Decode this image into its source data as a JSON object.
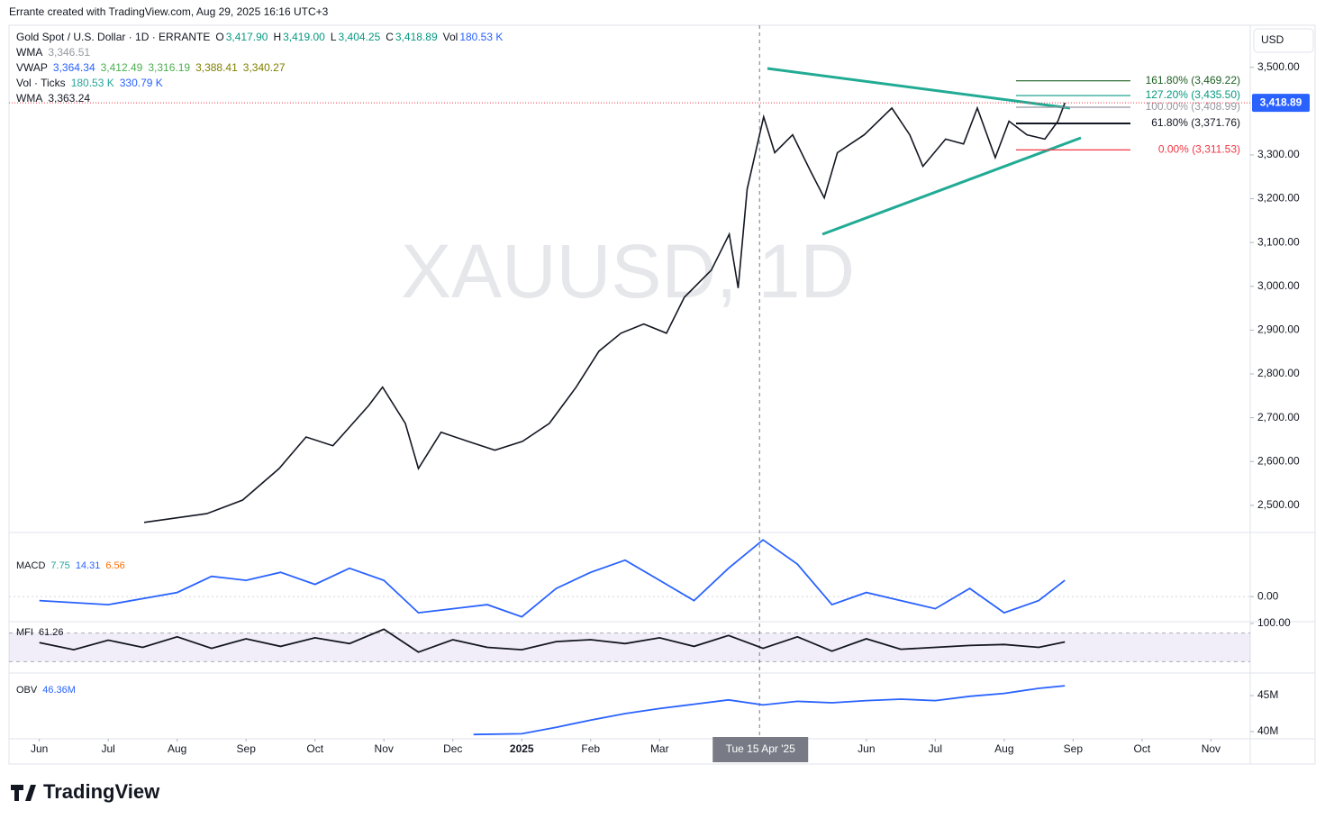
{
  "header": {
    "attribution": "Errante created with TradingView.com, Aug 29, 2025 16:16 UTC+3",
    "currency": "USD",
    "watermark": "XAUUSD, 1D",
    "brand": "TradingView"
  },
  "legend": [
    {
      "name": "Gold Spot / U.S. Dollar · 1D · ERRANTE",
      "values": [
        "O",
        "3,417.90",
        "H",
        "3,419.00",
        "L",
        "3,404.25",
        "C",
        "3,418.89",
        "Vol",
        "180.53 K"
      ],
      "colors": [
        "#131722",
        "#089981",
        "#131722",
        "#089981",
        "#131722",
        "#089981",
        "#131722",
        "#089981",
        "#131722",
        "#2962ff"
      ]
    },
    {
      "name": "WMA",
      "values": [
        "3,346.51"
      ],
      "colors": [
        "#9598a1"
      ]
    },
    {
      "name": "VWAP",
      "values": [
        "3,364.34",
        "3,412.49",
        "3,316.19",
        "3,388.41",
        "3,340.27"
      ],
      "colors": [
        "#2962ff",
        "#4caf50",
        "#4caf50",
        "#808000",
        "#808000"
      ]
    },
    {
      "name": "Vol · Ticks",
      "values": [
        "180.53 K",
        "330.79 K"
      ],
      "colors": [
        "#26a69a",
        "#2962ff"
      ]
    },
    {
      "name": "WMA",
      "values": [
        "3,363.24"
      ],
      "colors": [
        "#131722"
      ]
    }
  ],
  "chart_data": [
    {
      "type": "line",
      "color": "#131722",
      "x": [
        1.52,
        2.43,
        2.95,
        3.48,
        3.87,
        4.26,
        4.78,
        4.98,
        5.31,
        5.5,
        5.83,
        6.22,
        6.61,
        7.01,
        7.4,
        7.79,
        8.12,
        8.44,
        8.77,
        9.1,
        9.36,
        9.75,
        10.01,
        10.14,
        10.27,
        10.51,
        10.67,
        10.93,
        11.19,
        11.39,
        11.58,
        11.97,
        12.37,
        12.63,
        12.82,
        13.15,
        13.41,
        13.61,
        13.87,
        14.07,
        14.33,
        14.59,
        14.78,
        14.88
      ],
      "values": [
        2461,
        2481,
        2512,
        2584,
        2656,
        2636,
        2728,
        2770,
        2687,
        2584,
        2667,
        2646,
        2626,
        2646,
        2687,
        2770,
        2852,
        2893,
        2914,
        2893,
        2975,
        3037,
        3119,
        2996,
        3222,
        3387,
        3305,
        3346,
        3263,
        3202,
        3305,
        3346,
        3407,
        3346,
        3274,
        3336,
        3325,
        3407,
        3294,
        3377,
        3346,
        3336,
        3377,
        3418.89
      ],
      "xlim": [
        -0.44,
        17.57
      ],
      "xticks": [
        {
          "value": 0,
          "label": "Jun"
        },
        {
          "value": 1,
          "label": "Jul"
        },
        {
          "value": 2,
          "label": "Aug"
        },
        {
          "value": 3,
          "label": "Sep"
        },
        {
          "value": 4,
          "label": "Oct"
        },
        {
          "value": 5,
          "label": "Nov"
        },
        {
          "value": 6,
          "label": "Dec"
        },
        {
          "value": 7,
          "label": "2025"
        },
        {
          "value": 8,
          "label": "Feb"
        },
        {
          "value": 9,
          "label": "Mar"
        },
        {
          "value": 12,
          "label": "Jun"
        },
        {
          "value": 13,
          "label": "Jul"
        },
        {
          "value": 14,
          "label": "Aug"
        },
        {
          "value": 15,
          "label": "Sep"
        },
        {
          "value": 16,
          "label": "Oct"
        },
        {
          "value": 17,
          "label": "Nov"
        }
      ],
      "ylim": [
        2440,
        3592
      ],
      "yticks": [
        {
          "value": 3500,
          "label": "3,500.00"
        },
        {
          "value": 3300,
          "label": "3,300.00"
        },
        {
          "value": 3200,
          "label": "3,200.00"
        },
        {
          "value": 3100,
          "label": "3,100.00"
        },
        {
          "value": 3000,
          "label": "3,000.00"
        },
        {
          "value": 2900,
          "label": "2,900.00"
        },
        {
          "value": 2800,
          "label": "2,800.00"
        },
        {
          "value": 2700,
          "label": "2,700.00"
        },
        {
          "value": 2600,
          "label": "2,600.00"
        },
        {
          "value": 2500,
          "label": "2,500.00"
        }
      ],
      "last_price": {
        "value": 3418.89,
        "label": "3,418.89"
      },
      "crosshair": {
        "x": 10.45,
        "label": "Tue 15 Apr '25"
      },
      "fib_levels": [
        {
          "value": 3469.22,
          "label": "161.80% (3,469.22)",
          "color": "#1b5e20"
        },
        {
          "value": 3435.5,
          "label": "127.20% (3,435.50)",
          "color": "#089981"
        },
        {
          "value": 3408.99,
          "label": "100.00% (3,408.99)",
          "color": "#9598a1"
        },
        {
          "value": 3371.76,
          "label": "61.80% (3,371.76)",
          "color": "#131722"
        },
        {
          "value": 3311.53,
          "label": "0.00% (3,311.53)",
          "color": "#f23645"
        }
      ]
    },
    {
      "type": "line",
      "color": "#2962ff",
      "legend": {
        "name": "MACD",
        "values": [
          "7.75",
          "14.31",
          "6.56"
        ],
        "colors": [
          "#26a69a",
          "#2962ff",
          "#ff6d00"
        ]
      },
      "x": [
        0,
        1,
        2,
        2.5,
        3,
        3.5,
        4,
        4.5,
        5,
        5.5,
        6,
        6.5,
        7,
        7.5,
        8,
        8.5,
        9,
        9.5,
        10,
        10.5,
        11,
        11.5,
        12,
        12.5,
        13,
        13.5,
        14,
        14.5,
        14.88
      ],
      "values": [
        -5,
        -10,
        5,
        25,
        20,
        30,
        15,
        35,
        20,
        -20,
        -15,
        -10,
        -25,
        10,
        30,
        45,
        20,
        -5,
        35,
        70,
        40,
        -10,
        5,
        -5,
        -15,
        10,
        -20,
        -5,
        20
      ],
      "ylim": [
        -31,
        78
      ],
      "yticks": [
        {
          "value": 0,
          "label": "0.00"
        }
      ]
    },
    {
      "type": "line",
      "color": "#131722",
      "legend": {
        "name": "MFI",
        "values": [
          "61.26"
        ],
        "colors": [
          "#131722"
        ]
      },
      "x": [
        0,
        0.5,
        1,
        1.5,
        2,
        2.5,
        3,
        3.5,
        4,
        4.5,
        5,
        5.5,
        6,
        6.5,
        7,
        7.5,
        8,
        8.5,
        9,
        9.5,
        10,
        10.5,
        11,
        11.5,
        12,
        12.5,
        13,
        13.5,
        14,
        14.5,
        14.88
      ],
      "values": [
        60,
        45,
        65,
        50,
        72,
        48,
        68,
        52,
        70,
        58,
        88,
        40,
        66,
        50,
        45,
        62,
        66,
        58,
        70,
        52,
        75,
        48,
        72,
        42,
        68,
        46,
        50,
        54,
        56,
        50,
        61.26
      ],
      "ylim": [
        0,
        100
      ],
      "yticks": [
        {
          "value": 100,
          "label": "100.00"
        }
      ],
      "band": [
        20,
        80
      ]
    },
    {
      "type": "line",
      "color": "#2962ff",
      "legend": {
        "name": "OBV",
        "values": [
          "46.36M"
        ],
        "colors": [
          "#2962ff"
        ]
      },
      "x": [
        6.3,
        7,
        7.5,
        8,
        8.5,
        9,
        9.5,
        10,
        10.5,
        11,
        11.5,
        12,
        12.5,
        13,
        13.5,
        14,
        14.5,
        14.88
      ],
      "values": [
        39600000,
        39700000,
        40600000,
        41600000,
        42500000,
        43200000,
        43800000,
        44400000,
        43700000,
        44200000,
        44000000,
        44300000,
        44500000,
        44300000,
        44900000,
        45300000,
        46000000,
        46360000
      ],
      "ylim": [
        39250000,
        48000000
      ],
      "yticks": [
        {
          "value": 45000000,
          "label": "45M"
        },
        {
          "value": 40000000,
          "label": "40M"
        }
      ]
    }
  ]
}
